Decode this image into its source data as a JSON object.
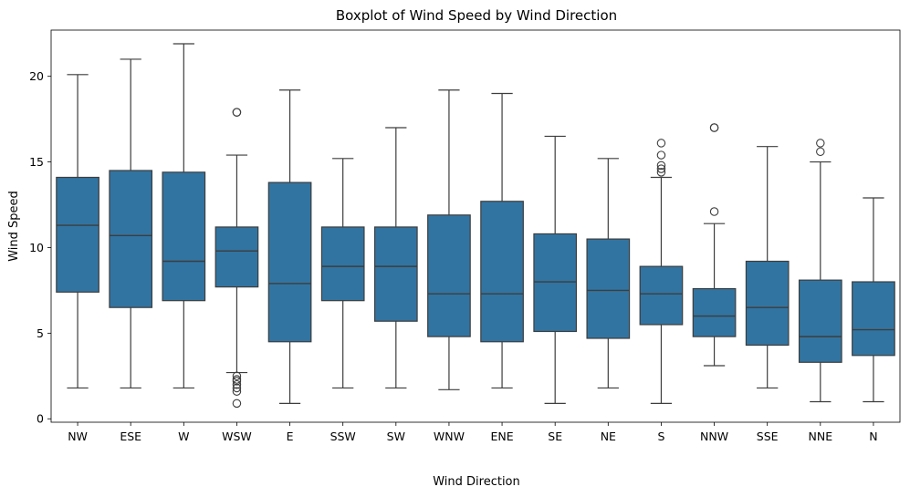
{
  "chart_data": {
    "type": "boxplot",
    "title": "Boxplot of Wind Speed by Wind Direction",
    "xlabel": "Wind Direction",
    "ylabel": "Wind Speed",
    "ylim": [
      -0.2,
      22.7
    ],
    "yticks": [
      0,
      5,
      10,
      15,
      20
    ],
    "grid": false,
    "box_color": "#3274a1",
    "line_color": "#3d3d3d",
    "categories": [
      "NW",
      "ESE",
      "W",
      "WSW",
      "E",
      "SSW",
      "SW",
      "WNW",
      "ENE",
      "SE",
      "NE",
      "S",
      "NNW",
      "SSE",
      "NNE",
      "N"
    ],
    "boxes": [
      {
        "category": "NW",
        "whislo": 1.8,
        "q1": 7.4,
        "med": 11.3,
        "q3": 14.1,
        "whishi": 20.1,
        "fliers": []
      },
      {
        "category": "ESE",
        "whislo": 1.8,
        "q1": 6.5,
        "med": 10.7,
        "q3": 14.5,
        "whishi": 21.0,
        "fliers": []
      },
      {
        "category": "W",
        "whislo": 1.8,
        "q1": 6.9,
        "med": 9.2,
        "q3": 14.4,
        "whishi": 21.9,
        "fliers": []
      },
      {
        "category": "WSW",
        "whislo": 2.7,
        "q1": 7.7,
        "med": 9.8,
        "q3": 11.2,
        "whishi": 15.4,
        "fliers": [
          17.9,
          17.9,
          2.5,
          2.3,
          2.2,
          2.0,
          1.8,
          1.6,
          0.9
        ]
      },
      {
        "category": "E",
        "whislo": 0.9,
        "q1": 4.5,
        "med": 7.9,
        "q3": 13.8,
        "whishi": 19.2,
        "fliers": []
      },
      {
        "category": "SSW",
        "whislo": 1.8,
        "q1": 6.9,
        "med": 8.9,
        "q3": 11.2,
        "whishi": 15.2,
        "fliers": []
      },
      {
        "category": "SW",
        "whislo": 1.8,
        "q1": 5.7,
        "med": 8.9,
        "q3": 11.2,
        "whishi": 17.0,
        "fliers": []
      },
      {
        "category": "WNW",
        "whislo": 1.7,
        "q1": 4.8,
        "med": 7.3,
        "q3": 11.9,
        "whishi": 19.2,
        "fliers": []
      },
      {
        "category": "ENE",
        "whislo": 1.8,
        "q1": 4.5,
        "med": 7.3,
        "q3": 12.7,
        "whishi": 19.0,
        "fliers": []
      },
      {
        "category": "SE",
        "whislo": 0.9,
        "q1": 5.1,
        "med": 8.0,
        "q3": 10.8,
        "whishi": 16.5,
        "fliers": []
      },
      {
        "category": "NE",
        "whislo": 1.8,
        "q1": 4.7,
        "med": 7.5,
        "q3": 10.5,
        "whishi": 15.2,
        "fliers": []
      },
      {
        "category": "S",
        "whislo": 0.9,
        "q1": 5.5,
        "med": 7.3,
        "q3": 8.9,
        "whishi": 14.1,
        "fliers": [
          16.1,
          15.4,
          14.8,
          14.6,
          14.4
        ]
      },
      {
        "category": "NNW",
        "whislo": 3.1,
        "q1": 4.8,
        "med": 6.0,
        "q3": 7.6,
        "whishi": 11.4,
        "fliers": [
          17.0,
          17.0,
          12.1
        ]
      },
      {
        "category": "SSE",
        "whislo": 1.8,
        "q1": 4.3,
        "med": 6.5,
        "q3": 9.2,
        "whishi": 15.9,
        "fliers": []
      },
      {
        "category": "NNE",
        "whislo": 1.0,
        "q1": 3.3,
        "med": 4.8,
        "q3": 8.1,
        "whishi": 15.0,
        "fliers": [
          16.1,
          15.6
        ]
      },
      {
        "category": "N",
        "whislo": 1.0,
        "q1": 3.7,
        "med": 5.2,
        "q3": 8.0,
        "whishi": 12.9,
        "fliers": []
      }
    ]
  }
}
